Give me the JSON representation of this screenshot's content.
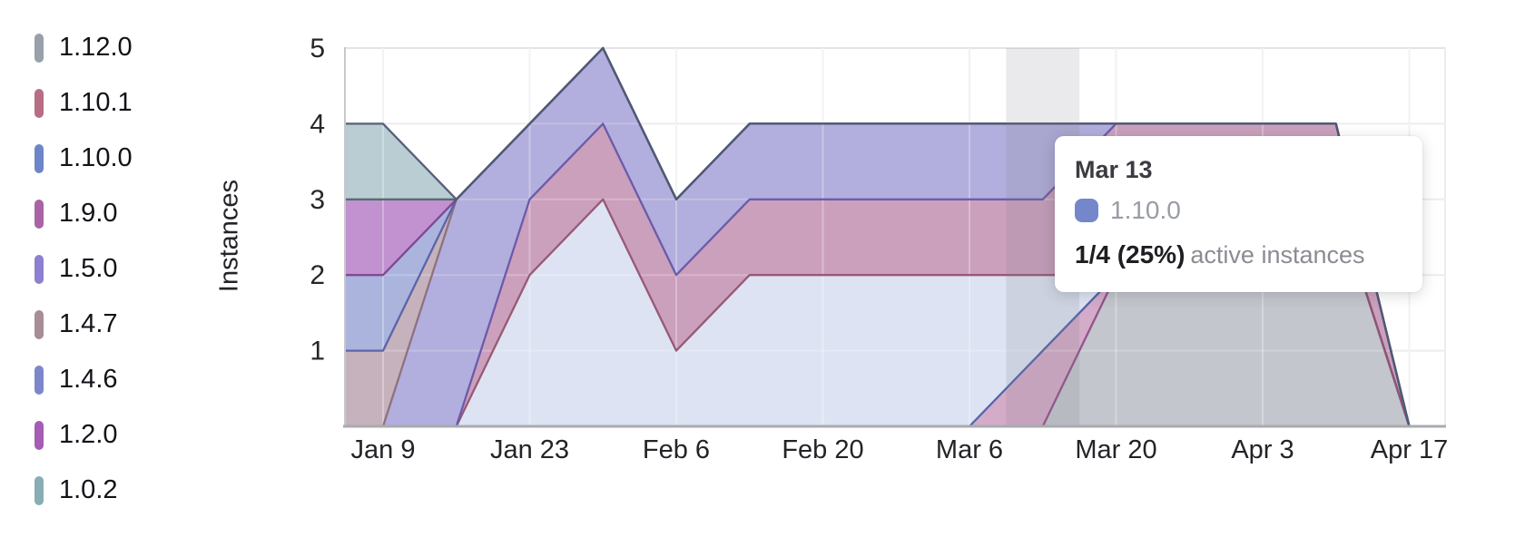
{
  "chart_data": {
    "type": "area",
    "stacked": true,
    "title": "",
    "xlabel": "",
    "ylabel": "Instances",
    "ylim": [
      0,
      5
    ],
    "yticks": [
      1,
      2,
      3,
      4,
      5
    ],
    "grid": true,
    "legend_position": "left",
    "dates": [
      "Jan 2",
      "Jan 9",
      "Jan 16",
      "Jan 23",
      "Jan 30",
      "Feb 6",
      "Feb 13",
      "Feb 20",
      "Feb 27",
      "Mar 6",
      "Mar 13",
      "Mar 20",
      "Mar 27",
      "Apr 3",
      "Apr 10",
      "Apr 17"
    ],
    "x_tick_labels": [
      "Jan 9",
      "Jan 23",
      "Feb 6",
      "Feb 20",
      "Mar 6",
      "Mar 20",
      "Apr 3",
      "Apr 17"
    ],
    "x_tick_indices": [
      1,
      3,
      5,
      7,
      9,
      11,
      13,
      15
    ],
    "top_edge_color": "#4e5a74",
    "series": [
      {
        "name": "1.12.0",
        "values": [
          0,
          0,
          0,
          0,
          0,
          0,
          0,
          0,
          0,
          0,
          0,
          2,
          2,
          3,
          3,
          0
        ],
        "fill": "#c3c6cc",
        "stroke": "#7a8089"
      },
      {
        "name": "1.9.0",
        "values": [
          0,
          0,
          0,
          0,
          0,
          0,
          0,
          0,
          0,
          0,
          1,
          0,
          0,
          0,
          0,
          0
        ],
        "fill": "#d4abc8",
        "stroke": "#8f4d88"
      },
      {
        "name": "1.10.0",
        "values": [
          0,
          0,
          0,
          2,
          3,
          1,
          2,
          2,
          2,
          2,
          1,
          0,
          0,
          0,
          0,
          0
        ],
        "fill": "#dde3f2",
        "stroke": "#4a5fa8"
      },
      {
        "name": "1.10.1",
        "values": [
          0,
          0,
          0,
          1,
          1,
          1,
          1,
          1,
          1,
          1,
          1,
          2,
          2,
          1,
          1,
          0
        ],
        "fill": "#cba0bd",
        "stroke": "#94536f"
      },
      {
        "name": "1.5.0",
        "values": [
          0,
          0,
          3,
          1,
          1,
          1,
          1,
          1,
          1,
          1,
          1,
          0,
          0,
          0,
          0,
          0
        ],
        "fill": "#b2aedd",
        "stroke": "#6656a8"
      },
      {
        "name": "1.4.7",
        "values": [
          1,
          1,
          0,
          0,
          0,
          0,
          0,
          0,
          0,
          0,
          0,
          0,
          0,
          0,
          0,
          0
        ],
        "fill": "#c6b2bd",
        "stroke": "#8a6f7b"
      },
      {
        "name": "1.4.6",
        "values": [
          1,
          1,
          0,
          0,
          0,
          0,
          0,
          0,
          0,
          0,
          0,
          0,
          0,
          0,
          0,
          0
        ],
        "fill": "#abb4dd",
        "stroke": "#5560a8"
      },
      {
        "name": "1.2.0",
        "values": [
          1,
          1,
          0,
          0,
          0,
          0,
          0,
          0,
          0,
          0,
          0,
          0,
          0,
          0,
          0,
          0
        ],
        "fill": "#c291cf",
        "stroke": "#7b4291"
      },
      {
        "name": "1.0.2",
        "values": [
          1,
          1,
          0,
          0,
          0,
          0,
          0,
          0,
          0,
          0,
          0,
          0,
          0,
          0,
          0,
          0
        ],
        "fill": "#b9cdd2",
        "stroke": "#4f666e"
      }
    ]
  },
  "legend": {
    "items": [
      {
        "label": "1.12.0",
        "color": "#98a1aa"
      },
      {
        "label": "1.10.1",
        "color": "#b76e84"
      },
      {
        "label": "1.10.0",
        "color": "#6e86c8"
      },
      {
        "label": "1.9.0",
        "color": "#aa63a5"
      },
      {
        "label": "1.5.0",
        "color": "#8c80d0"
      },
      {
        "label": "1.4.7",
        "color": "#a78d97"
      },
      {
        "label": "1.4.6",
        "color": "#7e86cb"
      },
      {
        "label": "1.2.0",
        "color": "#a55cb4"
      },
      {
        "label": "1.0.2",
        "color": "#86aeb4"
      }
    ]
  },
  "hover": {
    "date": "Mar 13",
    "index": 10
  },
  "tooltip": {
    "date": "Mar 13",
    "series": "1.10.0",
    "swatch_color": "#7487cb",
    "value": "1/4 (25%)",
    "label": "active instances"
  }
}
